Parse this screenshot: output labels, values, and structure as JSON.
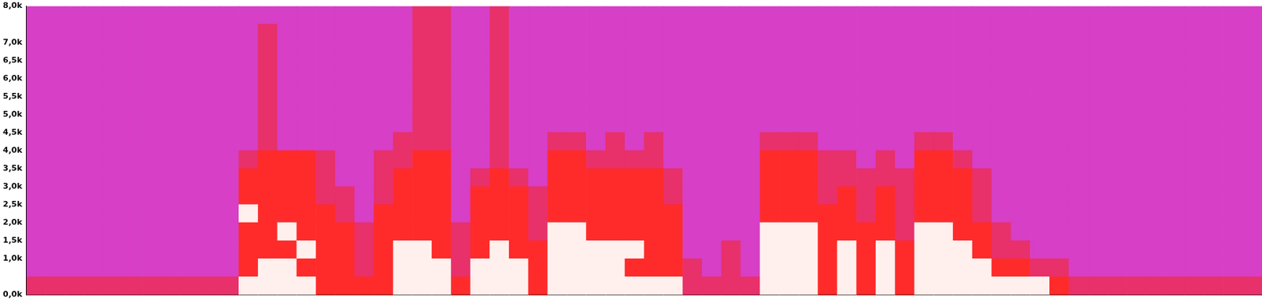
{
  "chart_data": {
    "type": "heatmap",
    "categories": [
      null,
      null,
      null,
      null,
      null,
      null,
      null,
      null,
      null,
      null,
      null,
      null,
      null,
      null,
      null,
      null,
      null,
      null,
      null,
      null,
      null,
      null,
      null,
      null,
      null,
      null,
      null,
      null,
      null,
      null,
      null,
      null,
      null,
      null,
      null,
      null,
      null,
      null,
      null,
      null,
      null,
      null,
      null,
      null,
      null,
      null,
      null,
      null,
      null,
      null,
      null,
      null,
      null,
      null,
      null,
      null,
      null,
      null,
      null,
      null,
      null,
      null,
      null,
      null
    ],
    "y_bins": [
      0,
      500,
      1000,
      1500,
      2000,
      2500,
      3000,
      3500,
      4000,
      4500,
      5000,
      5500,
      6000,
      6500,
      7000,
      7500,
      8000
    ],
    "cells": [
      [
        1,
        0,
        0,
        0,
        0,
        0,
        0,
        0,
        0,
        0,
        0,
        0,
        0,
        0,
        0,
        0
      ],
      [
        1,
        0,
        0,
        0,
        0,
        0,
        0,
        0,
        0,
        0,
        0,
        0,
        0,
        0,
        0,
        0
      ],
      [
        1,
        0,
        0,
        0,
        0,
        0,
        0,
        0,
        0,
        0,
        0,
        0,
        0,
        0,
        0,
        0
      ],
      [
        1,
        0,
        0,
        0,
        0,
        0,
        0,
        0,
        0,
        0,
        0,
        0,
        0,
        0,
        0,
        0
      ],
      [
        1,
        0,
        0,
        0,
        0,
        0,
        0,
        0,
        0,
        0,
        0,
        0,
        0,
        0,
        0,
        0
      ],
      [
        1,
        0,
        0,
        0,
        0,
        0,
        0,
        0,
        0,
        0,
        0,
        0,
        0,
        0,
        0,
        0
      ],
      [
        1,
        0,
        0,
        0,
        0,
        0,
        0,
        0,
        0,
        0,
        0,
        0,
        0,
        0,
        0,
        0
      ],
      [
        1,
        0,
        0,
        0,
        0,
        0,
        0,
        0,
        0,
        0,
        0,
        0,
        0,
        0,
        0,
        0
      ],
      [
        1,
        0,
        0,
        0,
        0,
        0,
        0,
        0,
        0,
        0,
        0,
        0,
        0,
        0,
        0,
        0
      ],
      [
        1,
        0,
        0,
        0,
        0,
        0,
        0,
        0,
        0,
        0,
        0,
        0,
        0,
        0,
        0,
        0
      ],
      [
        1,
        0,
        0,
        0,
        0,
        0,
        0,
        0,
        0,
        0,
        0,
        0,
        0,
        0,
        0,
        0
      ],
      [
        3,
        2,
        2,
        2,
        3,
        2,
        2,
        1,
        0,
        0,
        0,
        0,
        0,
        0,
        0,
        0
      ],
      [
        3,
        3,
        2,
        2,
        2,
        2,
        2,
        2,
        1,
        1,
        1,
        1,
        1,
        1,
        1,
        0
      ],
      [
        3,
        3,
        2,
        3,
        2,
        2,
        2,
        2,
        0,
        0,
        0,
        0,
        0,
        0,
        0,
        0
      ],
      [
        3,
        2,
        3,
        2,
        2,
        2,
        2,
        2,
        0,
        0,
        0,
        0,
        0,
        0,
        0,
        0
      ],
      [
        2,
        2,
        2,
        2,
        2,
        1,
        1,
        1,
        0,
        0,
        0,
        0,
        0,
        0,
        0,
        0
      ],
      [
        2,
        2,
        2,
        2,
        1,
        1,
        0,
        0,
        0,
        0,
        0,
        0,
        0,
        0,
        0,
        0
      ],
      [
        2,
        1,
        1,
        1,
        0,
        0,
        0,
        0,
        0,
        0,
        0,
        0,
        0,
        0,
        0,
        0
      ],
      [
        2,
        2,
        2,
        2,
        2,
        1,
        1,
        1,
        0,
        0,
        0,
        0,
        0,
        0,
        0,
        0
      ],
      [
        3,
        3,
        3,
        2,
        2,
        2,
        2,
        1,
        1,
        0,
        0,
        0,
        0,
        0,
        0,
        0
      ],
      [
        3,
        3,
        3,
        2,
        2,
        2,
        2,
        2,
        1,
        1,
        1,
        1,
        1,
        1,
        1,
        1
      ],
      [
        3,
        3,
        2,
        2,
        2,
        2,
        2,
        2,
        1,
        1,
        1,
        1,
        1,
        1,
        1,
        1
      ],
      [
        2,
        1,
        1,
        1,
        0,
        0,
        0,
        0,
        0,
        0,
        0,
        0,
        0,
        0,
        0,
        0
      ],
      [
        3,
        3,
        2,
        2,
        2,
        2,
        1,
        0,
        0,
        0,
        0,
        0,
        0,
        0,
        0,
        0
      ],
      [
        3,
        3,
        3,
        2,
        2,
        2,
        2,
        1,
        1,
        1,
        1,
        1,
        1,
        1,
        1,
        1
      ],
      [
        3,
        3,
        2,
        2,
        2,
        2,
        1,
        0,
        0,
        0,
        0,
        0,
        0,
        0,
        0,
        0
      ],
      [
        2,
        2,
        2,
        1,
        1,
        1,
        0,
        0,
        0,
        0,
        0,
        0,
        0,
        0,
        0,
        0
      ],
      [
        3,
        3,
        3,
        3,
        2,
        2,
        2,
        2,
        1,
        0,
        0,
        0,
        0,
        0,
        0,
        0
      ],
      [
        3,
        3,
        3,
        3,
        2,
        2,
        2,
        2,
        1,
        0,
        0,
        0,
        0,
        0,
        0,
        0
      ],
      [
        3,
        3,
        3,
        2,
        2,
        2,
        2,
        1,
        0,
        0,
        0,
        0,
        0,
        0,
        0,
        0
      ],
      [
        3,
        3,
        3,
        2,
        2,
        2,
        2,
        1,
        1,
        0,
        0,
        0,
        0,
        0,
        0,
        0
      ],
      [
        3,
        2,
        3,
        2,
        2,
        2,
        2,
        1,
        0,
        0,
        0,
        0,
        0,
        0,
        0,
        0
      ],
      [
        3,
        2,
        2,
        2,
        2,
        2,
        2,
        1,
        1,
        0,
        0,
        0,
        0,
        0,
        0,
        0
      ],
      [
        3,
        2,
        2,
        2,
        2,
        1,
        1,
        0,
        0,
        0,
        0,
        0,
        0,
        0,
        0,
        0
      ],
      [
        1,
        1,
        0,
        0,
        0,
        0,
        0,
        0,
        0,
        0,
        0,
        0,
        0,
        0,
        0,
        0
      ],
      [
        1,
        0,
        0,
        0,
        0,
        0,
        0,
        0,
        0,
        0,
        0,
        0,
        0,
        0,
        0,
        0
      ],
      [
        1,
        1,
        1,
        0,
        0,
        0,
        0,
        0,
        0,
        0,
        0,
        0,
        0,
        0,
        0,
        0
      ],
      [
        1,
        0,
        0,
        0,
        0,
        0,
        0,
        0,
        0,
        0,
        0,
        0,
        0,
        0,
        0,
        0
      ],
      [
        3,
        3,
        3,
        3,
        2,
        2,
        2,
        2,
        1,
        0,
        0,
        0,
        0,
        0,
        0,
        0
      ],
      [
        3,
        3,
        3,
        3,
        2,
        2,
        2,
        2,
        1,
        0,
        0,
        0,
        0,
        0,
        0,
        0
      ],
      [
        3,
        3,
        3,
        3,
        2,
        2,
        2,
        2,
        1,
        0,
        0,
        0,
        0,
        0,
        0,
        0
      ],
      [
        2,
        2,
        2,
        2,
        2,
        1,
        1,
        1,
        0,
        0,
        0,
        0,
        0,
        0,
        0,
        0
      ],
      [
        3,
        3,
        3,
        2,
        2,
        2,
        1,
        1,
        0,
        0,
        0,
        0,
        0,
        0,
        0,
        0
      ],
      [
        2,
        2,
        2,
        2,
        1,
        1,
        1,
        0,
        0,
        0,
        0,
        0,
        0,
        0,
        0,
        0
      ],
      [
        3,
        3,
        3,
        2,
        2,
        2,
        1,
        1,
        0,
        0,
        0,
        0,
        0,
        0,
        0,
        0
      ],
      [
        2,
        2,
        2,
        1,
        1,
        1,
        1,
        0,
        0,
        0,
        0,
        0,
        0,
        0,
        0,
        0
      ],
      [
        3,
        3,
        3,
        3,
        2,
        2,
        2,
        2,
        1,
        0,
        0,
        0,
        0,
        0,
        0,
        0
      ],
      [
        3,
        3,
        3,
        3,
        2,
        2,
        2,
        2,
        1,
        0,
        0,
        0,
        0,
        0,
        0,
        0
      ],
      [
        3,
        3,
        3,
        2,
        2,
        2,
        2,
        1,
        0,
        0,
        0,
        0,
        0,
        0,
        0,
        0
      ],
      [
        3,
        3,
        2,
        2,
        1,
        1,
        1,
        0,
        0,
        0,
        0,
        0,
        0,
        0,
        0,
        0
      ],
      [
        3,
        2,
        1,
        1,
        0,
        0,
        0,
        0,
        0,
        0,
        0,
        0,
        0,
        0,
        0,
        0
      ],
      [
        3,
        2,
        1,
        0,
        0,
        0,
        0,
        0,
        0,
        0,
        0,
        0,
        0,
        0,
        0,
        0
      ],
      [
        3,
        1,
        0,
        0,
        0,
        0,
        0,
        0,
        0,
        0,
        0,
        0,
        0,
        0,
        0,
        0
      ],
      [
        2,
        1,
        0,
        0,
        0,
        0,
        0,
        0,
        0,
        0,
        0,
        0,
        0,
        0,
        0,
        0
      ],
      [
        1,
        0,
        0,
        0,
        0,
        0,
        0,
        0,
        0,
        0,
        0,
        0,
        0,
        0,
        0,
        0
      ],
      [
        1,
        0,
        0,
        0,
        0,
        0,
        0,
        0,
        0,
        0,
        0,
        0,
        0,
        0,
        0,
        0
      ],
      [
        1,
        0,
        0,
        0,
        0,
        0,
        0,
        0,
        0,
        0,
        0,
        0,
        0,
        0,
        0,
        0
      ],
      [
        1,
        0,
        0,
        0,
        0,
        0,
        0,
        0,
        0,
        0,
        0,
        0,
        0,
        0,
        0,
        0
      ],
      [
        1,
        0,
        0,
        0,
        0,
        0,
        0,
        0,
        0,
        0,
        0,
        0,
        0,
        0,
        0,
        0
      ],
      [
        1,
        0,
        0,
        0,
        0,
        0,
        0,
        0,
        0,
        0,
        0,
        0,
        0,
        0,
        0,
        0
      ],
      [
        1,
        0,
        0,
        0,
        0,
        0,
        0,
        0,
        0,
        0,
        0,
        0,
        0,
        0,
        0,
        0
      ],
      [
        1,
        0,
        0,
        0,
        0,
        0,
        0,
        0,
        0,
        0,
        0,
        0,
        0,
        0,
        0,
        0
      ],
      [
        1,
        0,
        0,
        0,
        0,
        0,
        0,
        0,
        0,
        0,
        0,
        0,
        0,
        0,
        0,
        0
      ],
      [
        1,
        0,
        0,
        0,
        0,
        0,
        0,
        0,
        0,
        0,
        0,
        0,
        0,
        0,
        0,
        0
      ]
    ],
    "ylim": [
      0,
      8000
    ],
    "yticks": [
      {
        "value": 0,
        "label": "0,0k"
      },
      {
        "value": 1000,
        "label": "1,0k"
      },
      {
        "value": 1500,
        "label": "1,5k"
      },
      {
        "value": 2000,
        "label": "2,0k"
      },
      {
        "value": 2500,
        "label": "2,5k"
      },
      {
        "value": 3000,
        "label": "3,0k"
      },
      {
        "value": 3500,
        "label": "3,5k"
      },
      {
        "value": 4000,
        "label": "4,0k"
      },
      {
        "value": 4500,
        "label": "4,5k"
      },
      {
        "value": 5000,
        "label": "5,0k"
      },
      {
        "value": 5500,
        "label": "5,5k"
      },
      {
        "value": 6000,
        "label": "6,0k"
      },
      {
        "value": 6500,
        "label": "6,5k"
      },
      {
        "value": 7000,
        "label": "7,0k"
      },
      {
        "value": 8000,
        "label": "8,0k"
      }
    ],
    "tick_labels": "y",
    "grid": false
  }
}
